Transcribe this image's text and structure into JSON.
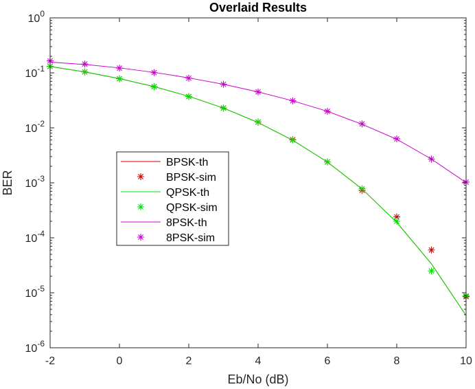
{
  "chart_data": {
    "type": "line",
    "title": "Overlaid Results",
    "xlabel": "Eb/No (dB)",
    "ylabel": "BER",
    "xlim": [
      -2,
      10
    ],
    "ylim": [
      1e-06,
      1
    ],
    "yscale": "log",
    "grid": false,
    "legend_placement": "center-left",
    "x_ticks": [
      -2,
      0,
      2,
      4,
      6,
      8,
      10
    ],
    "y_ticks": [
      {
        "value": 1.0,
        "base": "10",
        "exp": "0"
      },
      {
        "value": 0.1,
        "base": "10",
        "exp": "-1"
      },
      {
        "value": 0.01,
        "base": "10",
        "exp": "-2"
      },
      {
        "value": 0.001,
        "base": "10",
        "exp": "-3"
      },
      {
        "value": 0.0001,
        "base": "10",
        "exp": "-4"
      },
      {
        "value": 1e-05,
        "base": "10",
        "exp": "-5"
      },
      {
        "value": 1e-06,
        "base": "10",
        "exp": "-6"
      }
    ],
    "series": [
      {
        "name": "BPSK-th",
        "style": "line",
        "color": "#d40000",
        "x": [
          -2,
          -1,
          0,
          1,
          2,
          3,
          4,
          5,
          6,
          7,
          8,
          9,
          10
        ],
        "y": [
          0.1307,
          0.104,
          0.0786,
          0.0563,
          0.0375,
          0.0229,
          0.0125,
          0.00595,
          0.00239,
          0.000773,
          0.000191,
          3.36e-05,
          3.87e-06
        ]
      },
      {
        "name": "BPSK-sim",
        "style": "marker",
        "color": "#d40000",
        "x": [
          -2,
          -1,
          0,
          1,
          2,
          3,
          4,
          5,
          6,
          7,
          8,
          9,
          10
        ],
        "y": [
          0.131,
          0.104,
          0.078,
          0.056,
          0.037,
          0.0229,
          0.0127,
          0.0061,
          0.0024,
          0.00073,
          0.00024,
          6e-05,
          8.5e-06
        ]
      },
      {
        "name": "QPSK-th",
        "style": "line",
        "color": "#00e000",
        "x": [
          -2,
          -1,
          0,
          1,
          2,
          3,
          4,
          5,
          6,
          7,
          8,
          9,
          10
        ],
        "y": [
          0.1307,
          0.104,
          0.0786,
          0.0563,
          0.0375,
          0.0229,
          0.0125,
          0.00595,
          0.00239,
          0.000773,
          0.000191,
          3.36e-05,
          3.87e-06
        ]
      },
      {
        "name": "QPSK-sim",
        "style": "marker",
        "color": "#00e000",
        "x": [
          -2,
          -1,
          0,
          1,
          2,
          3,
          4,
          5,
          6,
          7,
          8,
          9,
          10
        ],
        "y": [
          0.131,
          0.104,
          0.078,
          0.056,
          0.037,
          0.0229,
          0.0128,
          0.006,
          0.0024,
          0.00078,
          0.0002,
          2.5e-05,
          8.8e-06
        ]
      },
      {
        "name": "8PSK-th",
        "style": "line",
        "color": "#cc00cc",
        "x": [
          -2,
          -1,
          0,
          1,
          2,
          3,
          4,
          5,
          6,
          7,
          8,
          9,
          10
        ],
        "y": [
          0.157,
          0.142,
          0.123,
          0.102,
          0.081,
          0.062,
          0.045,
          0.031,
          0.02,
          0.0116,
          0.0062,
          0.0027,
          0.00101
        ]
      },
      {
        "name": "8PSK-sim",
        "style": "marker",
        "color": "#cc00cc",
        "x": [
          -2,
          -1,
          0,
          1,
          2,
          3,
          4,
          5,
          6,
          7,
          8,
          9,
          10
        ],
        "y": [
          0.165,
          0.145,
          0.122,
          0.101,
          0.08,
          0.062,
          0.045,
          0.031,
          0.02,
          0.0118,
          0.0063,
          0.0027,
          0.00103
        ]
      }
    ]
  }
}
